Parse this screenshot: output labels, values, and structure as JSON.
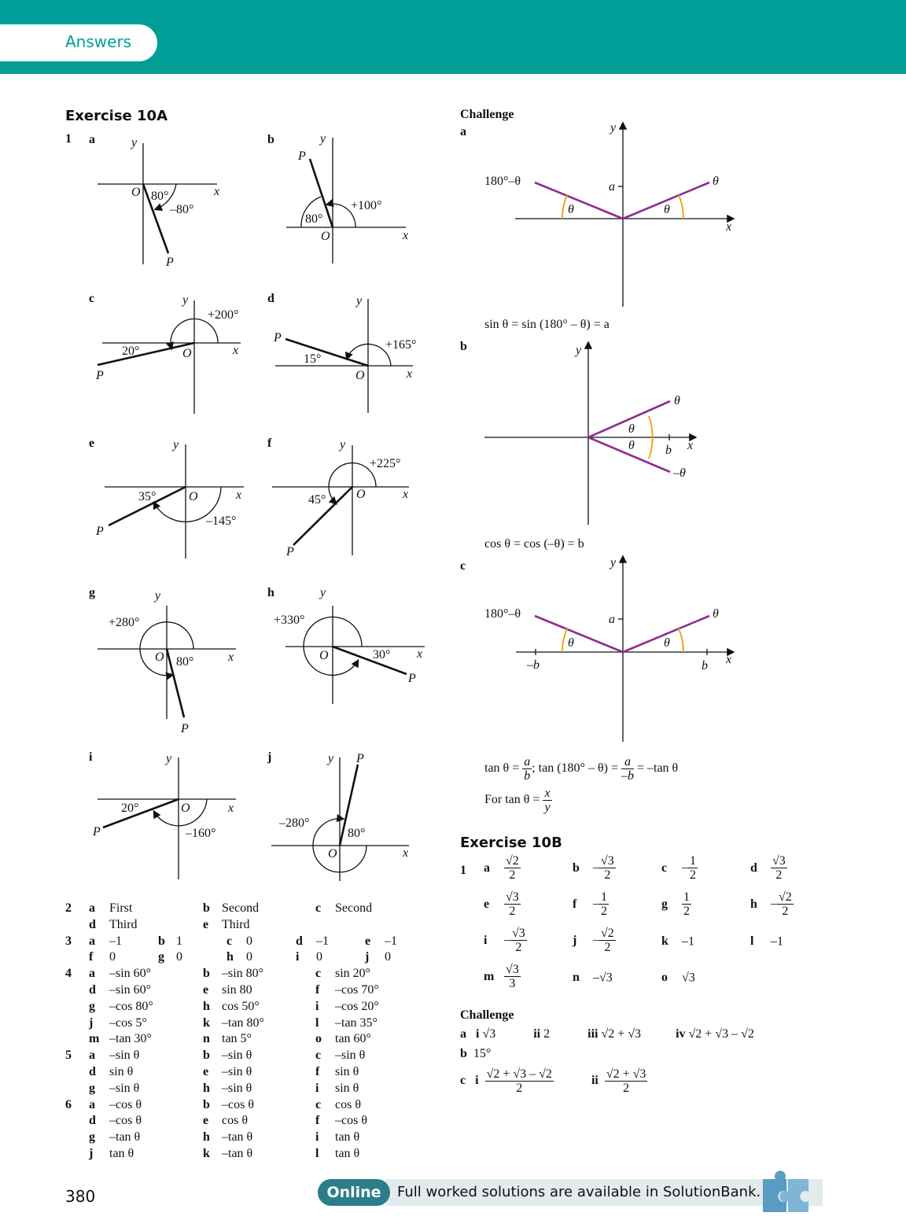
{
  "header": {
    "tab_label": "Answers",
    "banner_color": "#009e96"
  },
  "exercise_10a": {
    "title": "Exercise 10A",
    "q1": {
      "num": "1",
      "diagrams": {
        "a": {
          "letter": "a",
          "angles": [
            "80°",
            "–80°"
          ]
        },
        "b": {
          "letter": "b",
          "angles": [
            "80°",
            "+100°"
          ]
        },
        "c": {
          "letter": "c",
          "angles": [
            "20°",
            "+200°"
          ]
        },
        "d": {
          "letter": "d",
          "angles": [
            "15°",
            "+165°"
          ]
        },
        "e": {
          "letter": "e",
          "angles": [
            "35°",
            "–145°"
          ]
        },
        "f": {
          "letter": "f",
          "angles": [
            "45°",
            "+225°"
          ]
        },
        "g": {
          "letter": "g",
          "angles": [
            "80°",
            "+280°"
          ]
        },
        "h": {
          "letter": "h",
          "angles": [
            "30°",
            "+330°"
          ]
        },
        "i": {
          "letter": "i",
          "angles": [
            "20°",
            "–160°"
          ]
        },
        "j": {
          "letter": "j",
          "angles": [
            "80°",
            "–280°"
          ]
        }
      },
      "axis_labels": {
        "x": "x",
        "y": "y",
        "origin": "O",
        "point": "P"
      }
    },
    "q2": {
      "num": "2",
      "answers": [
        [
          "a",
          "First"
        ],
        [
          "b",
          "Second"
        ],
        [
          "c",
          "Second"
        ],
        [
          "d",
          "Third"
        ],
        [
          "e",
          "Third"
        ]
      ]
    },
    "q3": {
      "num": "3",
      "answers": [
        [
          "a",
          "–1"
        ],
        [
          "b",
          "1"
        ],
        [
          "c",
          "0"
        ],
        [
          "d",
          "–1"
        ],
        [
          "e",
          "–1"
        ],
        [
          "f",
          "0"
        ],
        [
          "g",
          "0"
        ],
        [
          "h",
          "0"
        ],
        [
          "i",
          "0"
        ],
        [
          "j",
          "0"
        ]
      ]
    },
    "q4": {
      "num": "4",
      "answers": [
        [
          "a",
          "–sin 60°"
        ],
        [
          "b",
          "–sin 80°"
        ],
        [
          "c",
          "sin 20°"
        ],
        [
          "d",
          "–sin 60°"
        ],
        [
          "e",
          "sin 80"
        ],
        [
          "f",
          "–cos 70°"
        ],
        [
          "g",
          "–cos 80°"
        ],
        [
          "h",
          "cos 50°"
        ],
        [
          "i",
          "–cos 20°"
        ],
        [
          "j",
          "–cos 5°"
        ],
        [
          "k",
          "–tan 80°"
        ],
        [
          "l",
          "–tan 35°"
        ],
        [
          "m",
          "–tan 30°"
        ],
        [
          "n",
          "tan 5°"
        ],
        [
          "o",
          "tan 60°"
        ]
      ]
    },
    "q5": {
      "num": "5",
      "answers": [
        [
          "a",
          "–sin θ"
        ],
        [
          "b",
          "–sin θ"
        ],
        [
          "c",
          "–sin θ"
        ],
        [
          "d",
          "sin θ"
        ],
        [
          "e",
          "–sin θ"
        ],
        [
          "f",
          "sin θ"
        ],
        [
          "g",
          "–sin θ"
        ],
        [
          "h",
          "–sin θ"
        ],
        [
          "i",
          "sin θ"
        ]
      ]
    },
    "q6": {
      "num": "6",
      "answers": [
        [
          "a",
          "–cos θ"
        ],
        [
          "b",
          "–cos θ"
        ],
        [
          "c",
          "cos θ"
        ],
        [
          "d",
          "–cos θ"
        ],
        [
          "e",
          "cos θ"
        ],
        [
          "f",
          "–cos θ"
        ],
        [
          "g",
          "–tan θ"
        ],
        [
          "h",
          "–tan θ"
        ],
        [
          "i",
          "tan θ"
        ],
        [
          "j",
          "tan θ"
        ],
        [
          "k",
          "–tan θ"
        ],
        [
          "l",
          "tan θ"
        ]
      ]
    }
  },
  "challenge_top": {
    "title": "Challenge",
    "a": {
      "letter": "a",
      "label_left": "180°–θ",
      "label_right": "θ",
      "theta": "θ",
      "a": "a",
      "equation": "sin θ = sin (180° – θ) = a"
    },
    "b": {
      "letter": "b",
      "label_top": "θ",
      "label_bottom": "–θ",
      "theta": "θ",
      "b": "b",
      "equation": "cos θ = cos (–θ) = b"
    },
    "c": {
      "letter": "c",
      "label_left": "180°–θ",
      "label_right": "θ",
      "theta": "θ",
      "a": "a",
      "neg_b": "–b",
      "b": "b",
      "eq1_prefix": "tan θ =",
      "eq1_num": "a",
      "eq1_den": "b",
      "eq1_mid": "; tan (180° – θ) =",
      "eq1_num2": "a",
      "eq1_den2": "–b",
      "eq1_suffix": "= –tan θ",
      "eq2_prefix": "For tan θ =",
      "eq2_num": "x",
      "eq2_den": "y"
    }
  },
  "exercise_10b": {
    "title": "Exercise 10B",
    "num": "1",
    "answers": [
      {
        "l": "a",
        "sign": "",
        "num": "√2",
        "den": "2"
      },
      {
        "l": "b",
        "sign": "–",
        "num": "√3",
        "den": "2"
      },
      {
        "l": "c",
        "sign": "–",
        "num": "1",
        "den": "2"
      },
      {
        "l": "d",
        "sign": "",
        "num": "√3",
        "den": "2"
      },
      {
        "l": "e",
        "sign": "",
        "num": "√3",
        "den": "2"
      },
      {
        "l": "f",
        "sign": "–",
        "num": "1",
        "den": "2"
      },
      {
        "l": "g",
        "sign": "",
        "num": "1",
        "den": "2"
      },
      {
        "l": "h",
        "sign": "–",
        "num": "√2",
        "den": "2"
      },
      {
        "l": "i",
        "sign": "–",
        "num": "√3",
        "den": "2"
      },
      {
        "l": "j",
        "sign": "–",
        "num": "√2",
        "den": "2"
      },
      {
        "l": "k",
        "plain": "–1"
      },
      {
        "l": "l",
        "plain": "–1"
      },
      {
        "l": "m",
        "sign": "",
        "num": "√3",
        "den": "3"
      },
      {
        "l": "n",
        "plain": "–√3"
      },
      {
        "l": "o",
        "plain": "√3"
      }
    ],
    "challenge": {
      "title": "Challenge",
      "a": "a",
      "a_i": "i",
      "a_i_val": "√3",
      "a_ii": "ii",
      "a_ii_val": "2",
      "a_iii": "iii",
      "a_iii_val": "√2 + √3",
      "a_iv": "iv",
      "a_iv_val": "√2 + √3 – √2",
      "b": "b",
      "b_val": "15°",
      "c": "c",
      "c_i": "i",
      "c_i_num": "√2 + √3 – √2",
      "c_i_den": "2",
      "c_ii": "ii",
      "c_ii_num": "√2 + √3",
      "c_ii_den": "2"
    }
  },
  "footer": {
    "page_number": "380",
    "online_label": "Online",
    "online_text": "Full worked solutions are available in SolutionBank."
  }
}
